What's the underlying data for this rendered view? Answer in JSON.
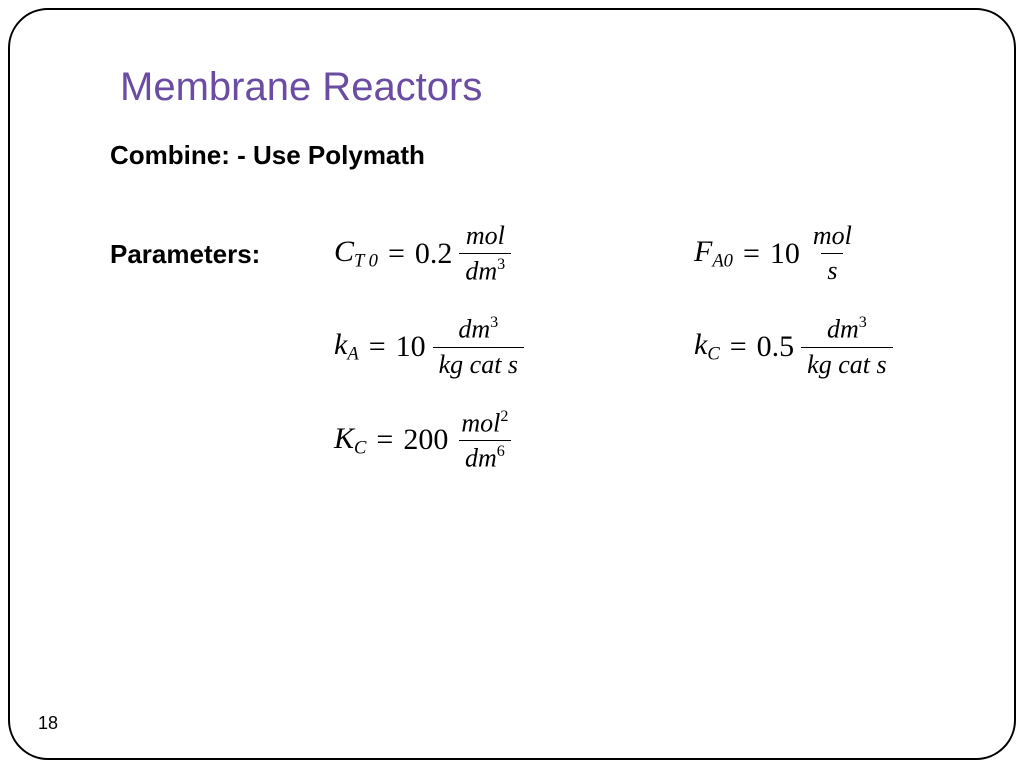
{
  "title": "Membrane Reactors",
  "combine_line": "Combine:  - Use Polymath",
  "params_label": "Parameters:",
  "page_number": "18",
  "eq": {
    "CT0": {
      "sym": "C",
      "sub": "T 0",
      "val": "0.2",
      "num": "mol",
      "den_v": "dm",
      "den_sup": "3"
    },
    "FA0": {
      "sym": "F",
      "sub": "A0",
      "val": "10",
      "num": "mol",
      "den_v": "s",
      "den_sup": ""
    },
    "kA": {
      "sym": "k",
      "sub": "A",
      "val": "10",
      "num_v": "dm",
      "num_sup": "3",
      "den": "kg cat s"
    },
    "kC": {
      "sym": "k",
      "sub": "C",
      "val": "0.5",
      "num_v": "dm",
      "num_sup": "3",
      "den": "kg cat s"
    },
    "KC": {
      "sym": "K",
      "sub": "C",
      "val": "200",
      "num_v": "mol",
      "num_sup": "2",
      "den_v": "dm",
      "den_sup": "6"
    }
  },
  "colors": {
    "title": "#6b4ca3",
    "text": "#000000",
    "background": "#ffffff",
    "border": "#000000"
  }
}
